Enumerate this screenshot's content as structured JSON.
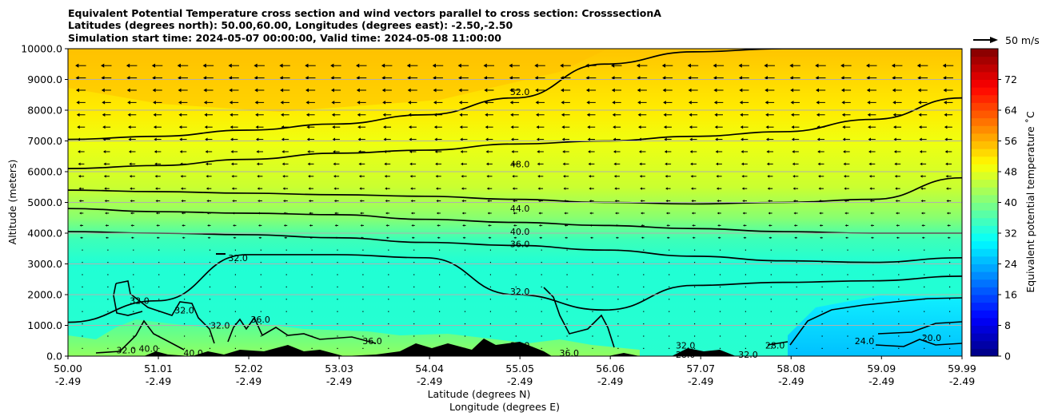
{
  "chart_data": {
    "type": "heatmap",
    "title": "Equivalent Potential Temperature cross section and wind vectors parallel to cross section: CrosssectionA",
    "subtitle_lines": [
      "Latitudes (degrees north): 50.00,60.00, Longitudes (degrees east): -2.50,-2.50",
      "Simulation start time: 2024-05-07 00:00:00, Valid time: 2024-05-08 11:00:00"
    ],
    "ylabel": "Altitude (meters)",
    "xlabel_lines": [
      "Latitude (degrees N)",
      "Longitude (degrees E)"
    ],
    "ylim": [
      0,
      10000
    ],
    "y_ticks": [
      "0.0",
      "1000.0",
      "2000.0",
      "3000.0",
      "4000.0",
      "5000.0",
      "6000.0",
      "7000.0",
      "8000.0",
      "9000.0",
      "10000.0"
    ],
    "x_range": [
      50.0,
      59.99
    ],
    "x_ticks": [
      {
        "lat": "50.00",
        "lon": "-2.49"
      },
      {
        "lat": "51.01",
        "lon": "-2.49"
      },
      {
        "lat": "52.02",
        "lon": "-2.49"
      },
      {
        "lat": "53.03",
        "lon": "-2.49"
      },
      {
        "lat": "54.04",
        "lon": "-2.49"
      },
      {
        "lat": "55.05",
        "lon": "-2.49"
      },
      {
        "lat": "56.06",
        "lon": "-2.49"
      },
      {
        "lat": "57.07",
        "lon": "-2.49"
      },
      {
        "lat": "58.08",
        "lon": "-2.49"
      },
      {
        "lat": "59.09",
        "lon": "-2.49"
      },
      {
        "lat": "59.99",
        "lon": "-2.49"
      }
    ],
    "colorbar": {
      "label": "Equivalent potential temperature ˚C",
      "range": [
        0,
        80
      ],
      "ticks": [
        "0",
        "8",
        "16",
        "24",
        "32",
        "40",
        "48",
        "56",
        "64",
        "72"
      ]
    },
    "wind_key": {
      "label": "50 m/s"
    },
    "contours": [
      {
        "level": "52.0",
        "alt": [
          7050,
          7150,
          7350,
          7550,
          7850,
          8400,
          9500,
          9900,
          10000,
          10000,
          10000
        ]
      },
      {
        "level": "48.0",
        "alt": [
          6100,
          6200,
          6400,
          6600,
          6700,
          6900,
          7000,
          7150,
          7300,
          7700,
          8400
        ]
      },
      {
        "level": "44.0",
        "alt": [
          5400,
          5350,
          5300,
          5250,
          5200,
          5100,
          5000,
          4950,
          5000,
          5100,
          5800
        ]
      },
      {
        "level": "40.0",
        "alt": [
          4800,
          4700,
          4650,
          4600,
          4450,
          4350,
          4250,
          4150,
          4050,
          4000,
          4000
        ]
      },
      {
        "level": "36.0",
        "alt": [
          4050,
          4000,
          3950,
          3850,
          3700,
          3600,
          3450,
          3250,
          3100,
          3050,
          3200
        ]
      },
      {
        "level": "32.0",
        "alt": [
          1100,
          1800,
          3300,
          3300,
          3200,
          2000,
          1500,
          2300,
          2400,
          2450,
          2600
        ]
      }
    ],
    "contour_labels": [
      {
        "text": "52.0",
        "lat": 55.05,
        "alt": 8600
      },
      {
        "text": "48.0",
        "lat": 55.05,
        "alt": 6250
      },
      {
        "text": "44.0",
        "lat": 55.05,
        "alt": 4800
      },
      {
        "text": "40.0",
        "lat": 55.05,
        "alt": 4050
      },
      {
        "text": "36.0",
        "lat": 55.05,
        "alt": 3650
      },
      {
        "text": "32.0",
        "lat": 55.05,
        "alt": 2100
      },
      {
        "text": "32.0",
        "lat": 51.9,
        "alt": 3200
      },
      {
        "text": "32.0",
        "lat": 50.8,
        "alt": 1800
      },
      {
        "text": "32.0",
        "lat": 51.3,
        "alt": 1500
      },
      {
        "text": "32.0",
        "lat": 51.7,
        "alt": 1000
      },
      {
        "text": "36.0",
        "lat": 52.15,
        "alt": 1200
      },
      {
        "text": "32.0",
        "lat": 50.65,
        "alt": 200
      },
      {
        "text": "40.0",
        "lat": 50.9,
        "alt": 250
      },
      {
        "text": "40.0",
        "lat": 51.4,
        "alt": 100
      },
      {
        "text": "36.0",
        "lat": 53.4,
        "alt": 500
      },
      {
        "text": "36.0",
        "lat": 55.05,
        "alt": 350
      },
      {
        "text": "36.0",
        "lat": 55.6,
        "alt": 100
      },
      {
        "text": "32.0",
        "lat": 56.9,
        "alt": 350
      },
      {
        "text": "28.0",
        "lat": 56.9,
        "alt": 50
      },
      {
        "text": "32.0",
        "lat": 57.6,
        "alt": 50
      },
      {
        "text": "28.0",
        "lat": 57.9,
        "alt": 350
      },
      {
        "text": "24.0",
        "lat": 58.9,
        "alt": 500
      },
      {
        "text": "20.0",
        "lat": 59.65,
        "alt": 600
      }
    ]
  }
}
